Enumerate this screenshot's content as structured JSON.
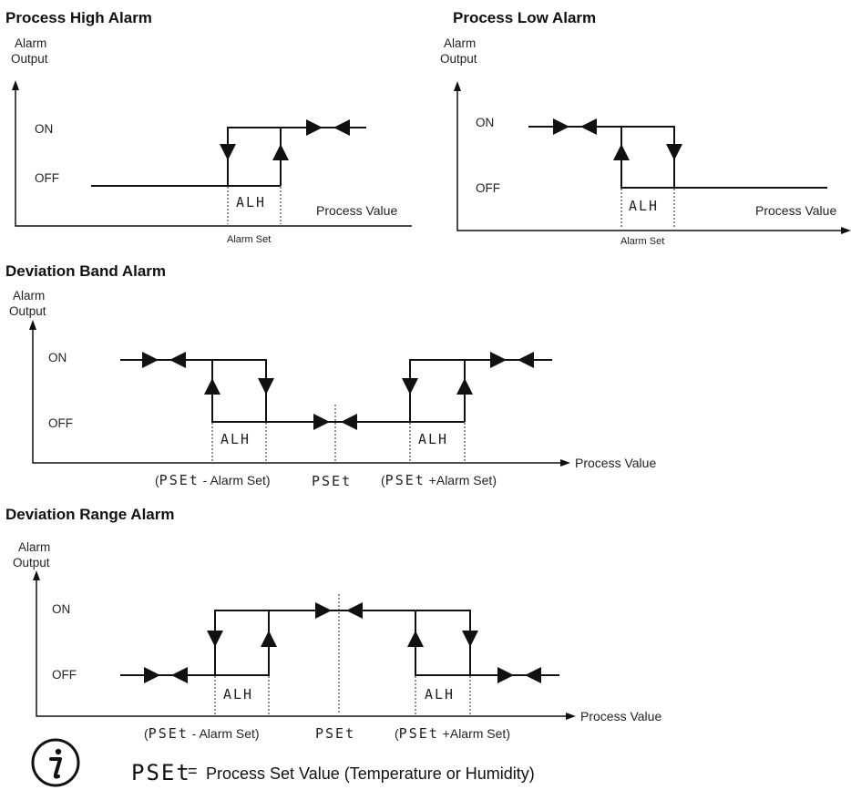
{
  "diagrams": {
    "high": {
      "title": "Process High Alarm",
      "y_label": [
        "Alarm",
        "Output"
      ],
      "on": "ON",
      "off": "OFF",
      "band_label": "ALH",
      "x_label": "Process Value",
      "set_label": "Alarm Set"
    },
    "low": {
      "title": "Process Low Alarm",
      "y_label": [
        "Alarm",
        "Output"
      ],
      "on": "ON",
      "off": "OFF",
      "band_label": "ALH",
      "x_label": "Process Value",
      "set_label": "Alarm Set"
    },
    "band": {
      "title": "Deviation Band Alarm",
      "y_label": [
        "Alarm",
        "Output"
      ],
      "on": "ON",
      "off": "OFF",
      "band_label_left": "ALH",
      "band_label_right": "ALH",
      "x_label": "Process Value",
      "minus_open": "(",
      "minus_code": "PSEt",
      "minus_text": " - Alarm Set)",
      "center_code": "PSEt",
      "plus_open": "(",
      "plus_code": "PSEt",
      "plus_text": " +Alarm Set)"
    },
    "range": {
      "title": "Deviation Range Alarm",
      "y_label": [
        "Alarm",
        "Output"
      ],
      "on": "ON",
      "off": "OFF",
      "band_label_left": "ALH",
      "band_label_right": "ALH",
      "x_label": "Process Value",
      "minus_open": "(",
      "minus_code": "PSEt",
      "minus_text": " - Alarm Set)",
      "center_code": "PSEt",
      "plus_open": "(",
      "plus_code": "PSEt",
      "plus_text": " +Alarm Set)"
    }
  },
  "footnote": {
    "icon": "info-icon",
    "code": "PSEt",
    "equals": "=",
    "text": "Process Set Value (Temperature or Humidity)"
  }
}
